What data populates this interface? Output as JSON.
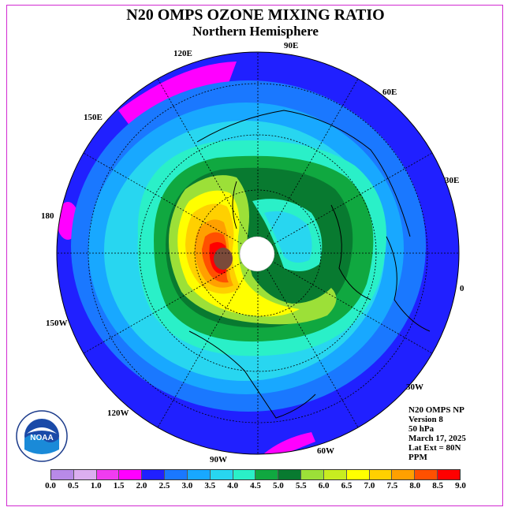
{
  "title": "N20 OMPS OZONE MIXING RATIO",
  "subtitle": "Northern Hemisphere",
  "longitude_labels": {
    "lon_120e": "120E",
    "lon_90e": "90E",
    "lon_60e": "60E",
    "lon_150e": "150E",
    "lon_30e": "30E",
    "lon_180": "180",
    "lon_0": "0",
    "lon_150w": "150W",
    "lon_30w": "30W",
    "lon_120w": "120W",
    "lon_60w": "60W",
    "lon_90w": "90W"
  },
  "info": {
    "line1": "N20 OMPS NP",
    "line2": "Version 8",
    "line3": "50 hPa",
    "line4": "March 17, 2025",
    "line5": "Lat Ext = 80N",
    "line6": "PPM"
  },
  "logo_text": "NOAA",
  "legend": {
    "ticks": [
      "0.0",
      "0.5",
      "1.0",
      "1.5",
      "2.0",
      "2.5",
      "3.0",
      "3.5",
      "4.0",
      "4.5",
      "5.0",
      "5.5",
      "6.0",
      "6.5",
      "7.0",
      "7.5",
      "8.0",
      "8.5",
      "9.0"
    ],
    "colors": [
      "#b88ae8",
      "#dcaef0",
      "#f03cf0",
      "#ff00ff",
      "#2020ff",
      "#1a78ff",
      "#18a8ff",
      "#28d6f0",
      "#2af0c8",
      "#10a840",
      "#087a30",
      "#9ce038",
      "#c8ec20",
      "#ffff00",
      "#ffd000",
      "#ffa000",
      "#ff5000",
      "#ff0000",
      "#7a4a3a"
    ]
  },
  "colors": {
    "frame": "#d22ad2",
    "pole_cap": "#ffffff",
    "outer_blue": "#2020ff"
  }
}
